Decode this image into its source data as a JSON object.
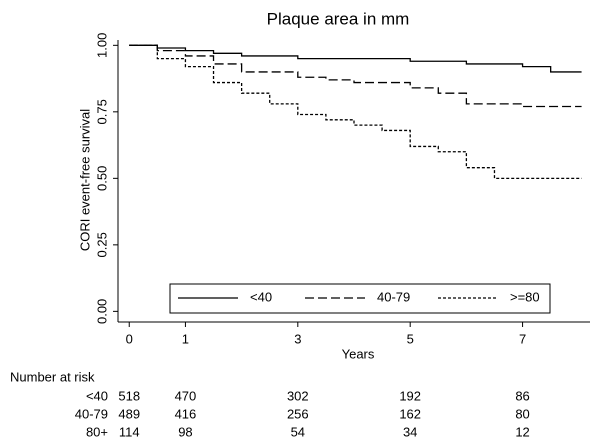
{
  "chart_data": {
    "type": "step",
    "title": "Plaque area in mm",
    "xlabel": "Years",
    "ylabel": "CORI event-free survival",
    "xlim": [
      -0.2,
      8.2
    ],
    "ylim": [
      -0.04,
      1.02
    ],
    "xticks": [
      0,
      1,
      3,
      5,
      7
    ],
    "yticks": [
      {
        "value": 0,
        "label": "0.00"
      },
      {
        "value": 0.25,
        "label": "0.25"
      },
      {
        "value": 0.5,
        "label": "0.50"
      },
      {
        "value": 0.75,
        "label": "0.75"
      },
      {
        "value": 1,
        "label": "1.00"
      }
    ],
    "series": [
      {
        "name": "<40",
        "color": "#000000",
        "line_style": "solid",
        "x": [
          0,
          0.5,
          1,
          1.5,
          2,
          3,
          5,
          6,
          7,
          7.5,
          8.05
        ],
        "values": [
          1,
          0.99,
          0.98,
          0.97,
          0.96,
          0.95,
          0.94,
          0.93,
          0.92,
          0.9,
          0.9
        ]
      },
      {
        "name": "40-79",
        "color": "#000000",
        "line_style": "dashed",
        "x": [
          0,
          0.5,
          1,
          1.5,
          2,
          3,
          3.5,
          4,
          5,
          5.5,
          6,
          7,
          8.05
        ],
        "values": [
          1,
          0.98,
          0.96,
          0.93,
          0.9,
          0.88,
          0.87,
          0.86,
          0.84,
          0.82,
          0.78,
          0.77,
          0.77
        ]
      },
      {
        "name": ">=80",
        "color": "#000000",
        "line_style": "dotted",
        "x": [
          0,
          0.5,
          1,
          1.5,
          2,
          2.5,
          3,
          3.5,
          4,
          4.5,
          5,
          5.5,
          6,
          6.5,
          8.05
        ],
        "values": [
          1,
          0.95,
          0.92,
          0.86,
          0.82,
          0.78,
          0.74,
          0.72,
          0.7,
          0.68,
          0.62,
          0.6,
          0.54,
          0.5,
          0.5
        ]
      }
    ],
    "legend": "bottom",
    "risk_table": {
      "title": "Number at risk",
      "rows": [
        {
          "label": "<40",
          "values": [
            518,
            470,
            302,
            192,
            86
          ]
        },
        {
          "label": "40-79",
          "values": [
            489,
            416,
            256,
            162,
            80
          ]
        },
        {
          "label": "80+",
          "values": [
            114,
            98,
            54,
            34,
            12
          ]
        }
      ]
    }
  }
}
